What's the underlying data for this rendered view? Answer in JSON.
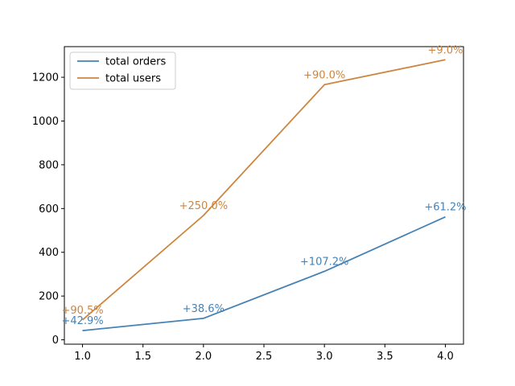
{
  "chart_data": {
    "type": "line",
    "title": "",
    "xlabel": "",
    "ylabel": "",
    "xlim": [
      0.85,
      4.15
    ],
    "ylim": [
      -20,
      1340
    ],
    "x_ticks": [
      1.0,
      1.5,
      2.0,
      2.5,
      3.0,
      3.5,
      4.0
    ],
    "x_tick_labels": [
      "1.0",
      "1.5",
      "2.0",
      "2.5",
      "3.0",
      "3.5",
      "4.0"
    ],
    "y_ticks": [
      0,
      200,
      400,
      600,
      800,
      1000,
      1200
    ],
    "y_tick_labels": [
      "0",
      "200",
      "400",
      "600",
      "800",
      "1000",
      "1200"
    ],
    "grid": false,
    "legend_position": "top-left",
    "series": [
      {
        "name": "total orders",
        "color": "#4682b4",
        "x": [
          1,
          2,
          3,
          4
        ],
        "values": [
          42,
          98,
          313,
          562
        ],
        "labels": [
          "+42.9%",
          "+38.6%",
          "+107.2%",
          "+61.2%"
        ]
      },
      {
        "name": "total users",
        "color": "#cd853f",
        "x": [
          1,
          2,
          3,
          4
        ],
        "values": [
          91,
          568,
          1166,
          1280
        ],
        "labels": [
          "+90.5%",
          "+250.0%",
          "+90.0%",
          "+9.0%"
        ]
      }
    ]
  }
}
